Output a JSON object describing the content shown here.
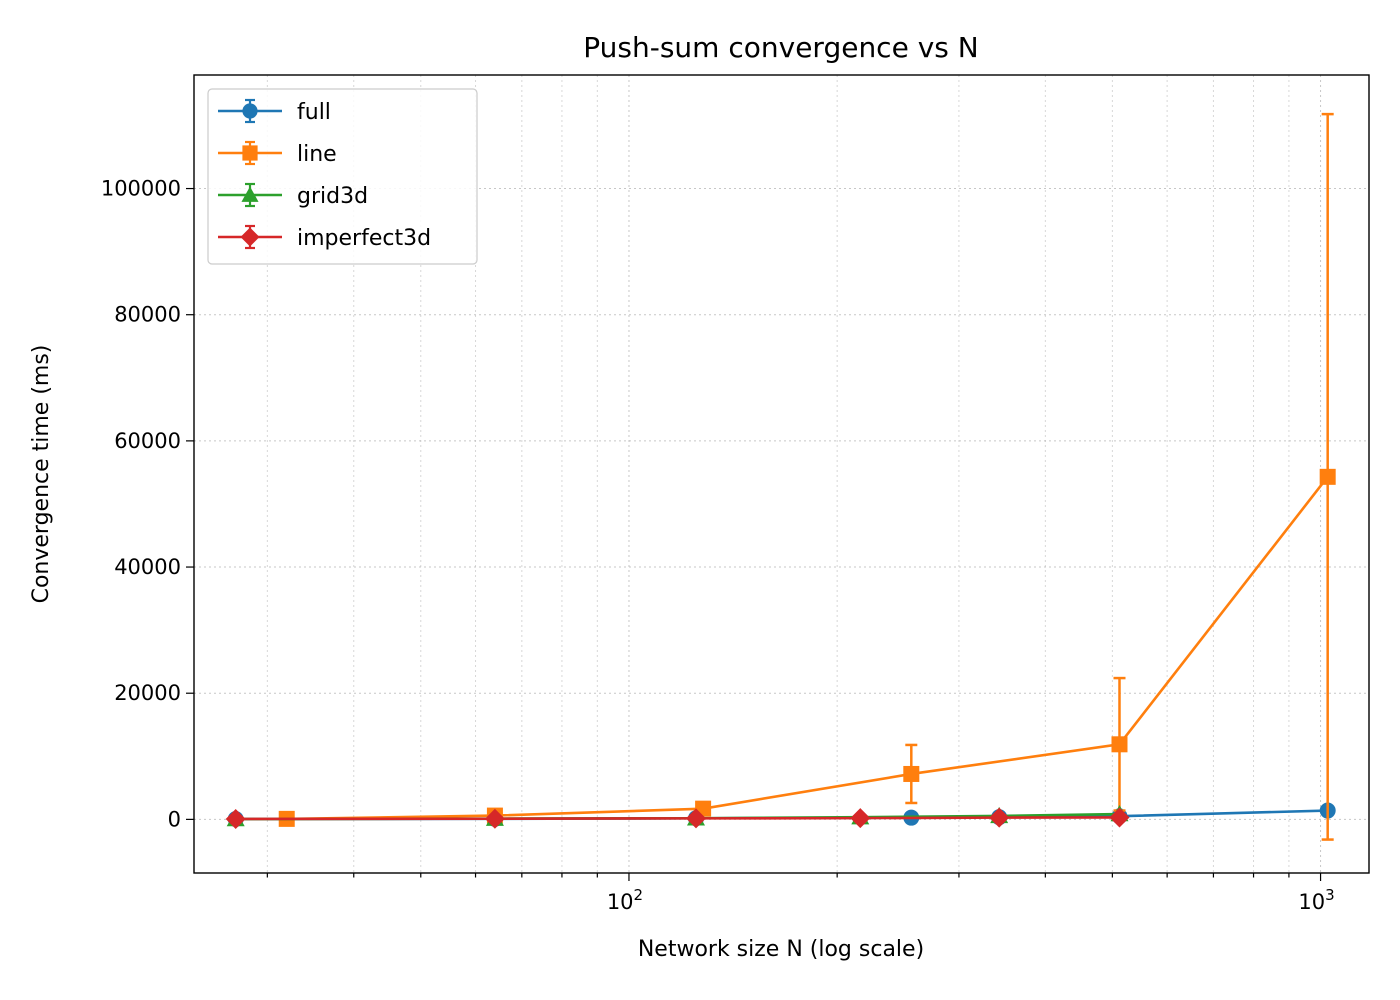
{
  "chart_data": {
    "type": "line",
    "title": "Push-sum convergence vs N",
    "xlabel": "Network size N (log scale)",
    "ylabel": "Convergence time (ms)",
    "x_scale": "log",
    "xlim": [
      23.5,
      1175
    ],
    "ylim": [
      -8500,
      118000
    ],
    "x_ticks": [
      {
        "value": 100,
        "base": "10",
        "exp": "2"
      },
      {
        "value": 1000,
        "base": "10",
        "exp": "3"
      }
    ],
    "y_ticks": [
      {
        "value": 0,
        "label": "0"
      },
      {
        "value": 20000,
        "label": "20000"
      },
      {
        "value": 40000,
        "label": "40000"
      },
      {
        "value": 60000,
        "label": "60000"
      },
      {
        "value": 80000,
        "label": "80000"
      },
      {
        "value": 100000,
        "label": "100000"
      }
    ],
    "grid": true,
    "legend_position": "upper left",
    "series": [
      {
        "name": "full",
        "color": "#1f77b4",
        "marker": "circle",
        "x": [
          27,
          64,
          125,
          256,
          343,
          512,
          1024
        ],
        "y": [
          60,
          90,
          180,
          270,
          350,
          500,
          1400
        ],
        "err": [
          0,
          0,
          0,
          0,
          0,
          0,
          0
        ]
      },
      {
        "name": "line",
        "color": "#ff7f0e",
        "marker": "square",
        "x": [
          32,
          64,
          128,
          256,
          512,
          1024
        ],
        "y": [
          80,
          600,
          1700,
          7200,
          11900,
          54300
        ],
        "err": [
          0,
          0,
          0,
          4600,
          10500,
          57500
        ]
      },
      {
        "name": "grid3d",
        "color": "#2ca02c",
        "marker": "triangle",
        "x": [
          27,
          64,
          125,
          216,
          343,
          512
        ],
        "y": [
          50,
          120,
          180,
          350,
          550,
          850
        ],
        "err": [
          0,
          0,
          0,
          0,
          0,
          0
        ]
      },
      {
        "name": "imperfect3d",
        "color": "#d62728",
        "marker": "diamond",
        "x": [
          27,
          64,
          125,
          216,
          343,
          512
        ],
        "y": [
          60,
          100,
          160,
          200,
          280,
          300
        ],
        "err": [
          0,
          0,
          0,
          0,
          0,
          0
        ]
      }
    ]
  }
}
